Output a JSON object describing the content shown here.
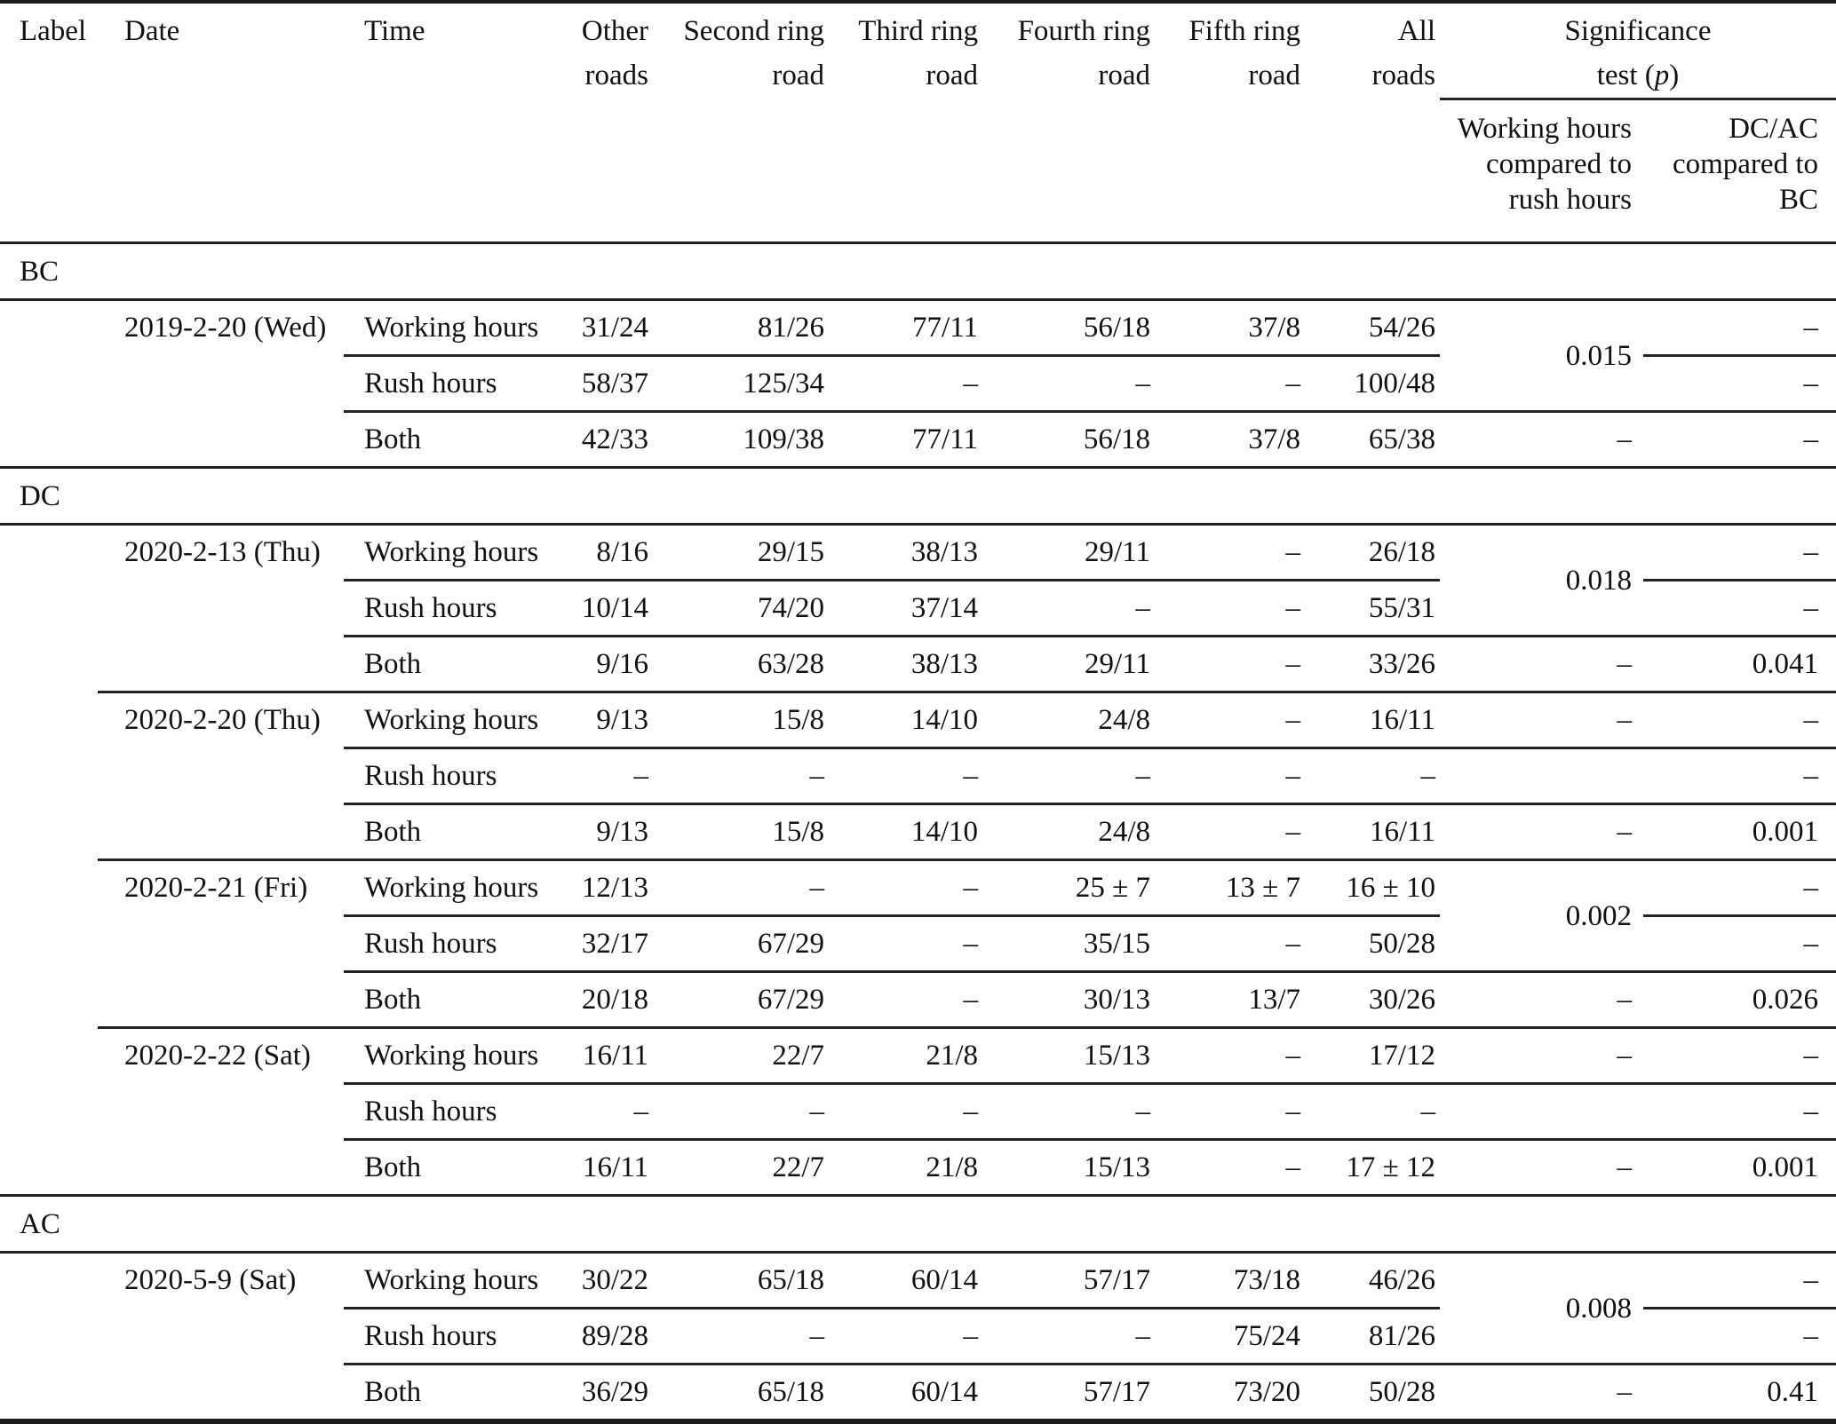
{
  "table": {
    "header": {
      "label": "Label",
      "date": "Date",
      "time": "Time",
      "roads": [
        {
          "line1": "Other",
          "line2": "roads"
        },
        {
          "line1": "Second ring",
          "line2": "road"
        },
        {
          "line1": "Third ring",
          "line2": "road"
        },
        {
          "line1": "Fourth ring",
          "line2": "road"
        },
        {
          "line1": "Fifth ring",
          "line2": "road"
        },
        {
          "line1": "All",
          "line2": "roads"
        }
      ],
      "significance": {
        "line1": "Significance",
        "line2_pre": "test (",
        "p": "p",
        "line2_post": ")"
      },
      "sub_working_rush": [
        "Working hours",
        "compared to",
        "rush hours"
      ],
      "sub_dcac_bc": [
        "DC/AC",
        "compared to",
        "BC"
      ]
    },
    "sections": [
      {
        "label": "BC",
        "groups": [
          {
            "date": "2019-2-20 (Wed)",
            "p_span": "0.015",
            "rows": [
              {
                "time": "Working hours",
                "values": [
                  "31/24",
                  "81/26",
                  "77/11",
                  "56/18",
                  "37/8",
                  "54/26"
                ],
                "sig1": "",
                "sig2": "–"
              },
              {
                "time": "Rush hours",
                "values": [
                  "58/37",
                  "125/34",
                  "–",
                  "–",
                  "–",
                  "100/48"
                ],
                "sig1": "",
                "sig2": "–"
              },
              {
                "time": "Both",
                "values": [
                  "42/33",
                  "109/38",
                  "77/11",
                  "56/18",
                  "37/8",
                  "65/38"
                ],
                "sig1": "–",
                "sig2": "–"
              }
            ]
          }
        ]
      },
      {
        "label": "DC",
        "groups": [
          {
            "date": "2020-2-13 (Thu)",
            "p_span": "0.018",
            "rows": [
              {
                "time": "Working hours",
                "values": [
                  "8/16",
                  "29/15",
                  "38/13",
                  "29/11",
                  "–",
                  "26/18"
                ],
                "sig1": "",
                "sig2": "–"
              },
              {
                "time": "Rush hours",
                "values": [
                  "10/14",
                  "74/20",
                  "37/14",
                  "–",
                  "–",
                  "55/31"
                ],
                "sig1": "",
                "sig2": "–"
              },
              {
                "time": "Both",
                "values": [
                  "9/16",
                  "63/28",
                  "38/13",
                  "29/11",
                  "–",
                  "33/26"
                ],
                "sig1": "–",
                "sig2": "0.041"
              }
            ]
          },
          {
            "date": "2020-2-20 (Thu)",
            "p_span": null,
            "rows": [
              {
                "time": "Working hours",
                "values": [
                  "9/13",
                  "15/8",
                  "14/10",
                  "24/8",
                  "–",
                  "16/11"
                ],
                "sig1": "–",
                "sig2": "–"
              },
              {
                "time": "Rush hours",
                "values": [
                  "–",
                  "–",
                  "–",
                  "–",
                  "–",
                  "–"
                ],
                "sig1": "",
                "sig2": "–"
              },
              {
                "time": "Both",
                "values": [
                  "9/13",
                  "15/8",
                  "14/10",
                  "24/8",
                  "–",
                  "16/11"
                ],
                "sig1": "–",
                "sig2": "0.001"
              }
            ]
          },
          {
            "date": "2020-2-21 (Fri)",
            "p_span": "0.002",
            "rows": [
              {
                "time": "Working hours",
                "values": [
                  "12/13",
                  "–",
                  "–",
                  "25 ± 7",
                  "13 ± 7",
                  "16 ± 10"
                ],
                "sig1": "",
                "sig2": "–"
              },
              {
                "time": "Rush hours",
                "values": [
                  "32/17",
                  "67/29",
                  "–",
                  "35/15",
                  "–",
                  "50/28"
                ],
                "sig1": "",
                "sig2": "–"
              },
              {
                "time": "Both",
                "values": [
                  "20/18",
                  "67/29",
                  "–",
                  "30/13",
                  "13/7",
                  "30/26"
                ],
                "sig1": "–",
                "sig2": "0.026"
              }
            ]
          },
          {
            "date": "2020-2-22 (Sat)",
            "p_span": null,
            "rows": [
              {
                "time": "Working hours",
                "values": [
                  "16/11",
                  "22/7",
                  "21/8",
                  "15/13",
                  "–",
                  "17/12"
                ],
                "sig1": "–",
                "sig2": "–"
              },
              {
                "time": "Rush hours",
                "values": [
                  "–",
                  "–",
                  "–",
                  "–",
                  "–",
                  "–"
                ],
                "sig1": "",
                "sig2": "–"
              },
              {
                "time": "Both",
                "values": [
                  "16/11",
                  "22/7",
                  "21/8",
                  "15/13",
                  "–",
                  "17 ± 12"
                ],
                "sig1": "–",
                "sig2": "0.001"
              }
            ]
          }
        ]
      },
      {
        "label": "AC",
        "groups": [
          {
            "date": "2020-5-9 (Sat)",
            "p_span": "0.008",
            "rows": [
              {
                "time": "Working hours",
                "values": [
                  "30/22",
                  "65/18",
                  "60/14",
                  "57/17",
                  "73/18",
                  "46/26"
                ],
                "sig1": "",
                "sig2": "–"
              },
              {
                "time": "Rush hours",
                "values": [
                  "89/28",
                  "–",
                  "–",
                  "–",
                  "75/24",
                  "81/26"
                ],
                "sig1": "",
                "sig2": "–"
              },
              {
                "time": "Both",
                "values": [
                  "36/29",
                  "65/18",
                  "60/14",
                  "57/17",
                  "73/20",
                  "50/28"
                ],
                "sig1": "–",
                "sig2": "0.41"
              }
            ]
          }
        ]
      }
    ]
  }
}
